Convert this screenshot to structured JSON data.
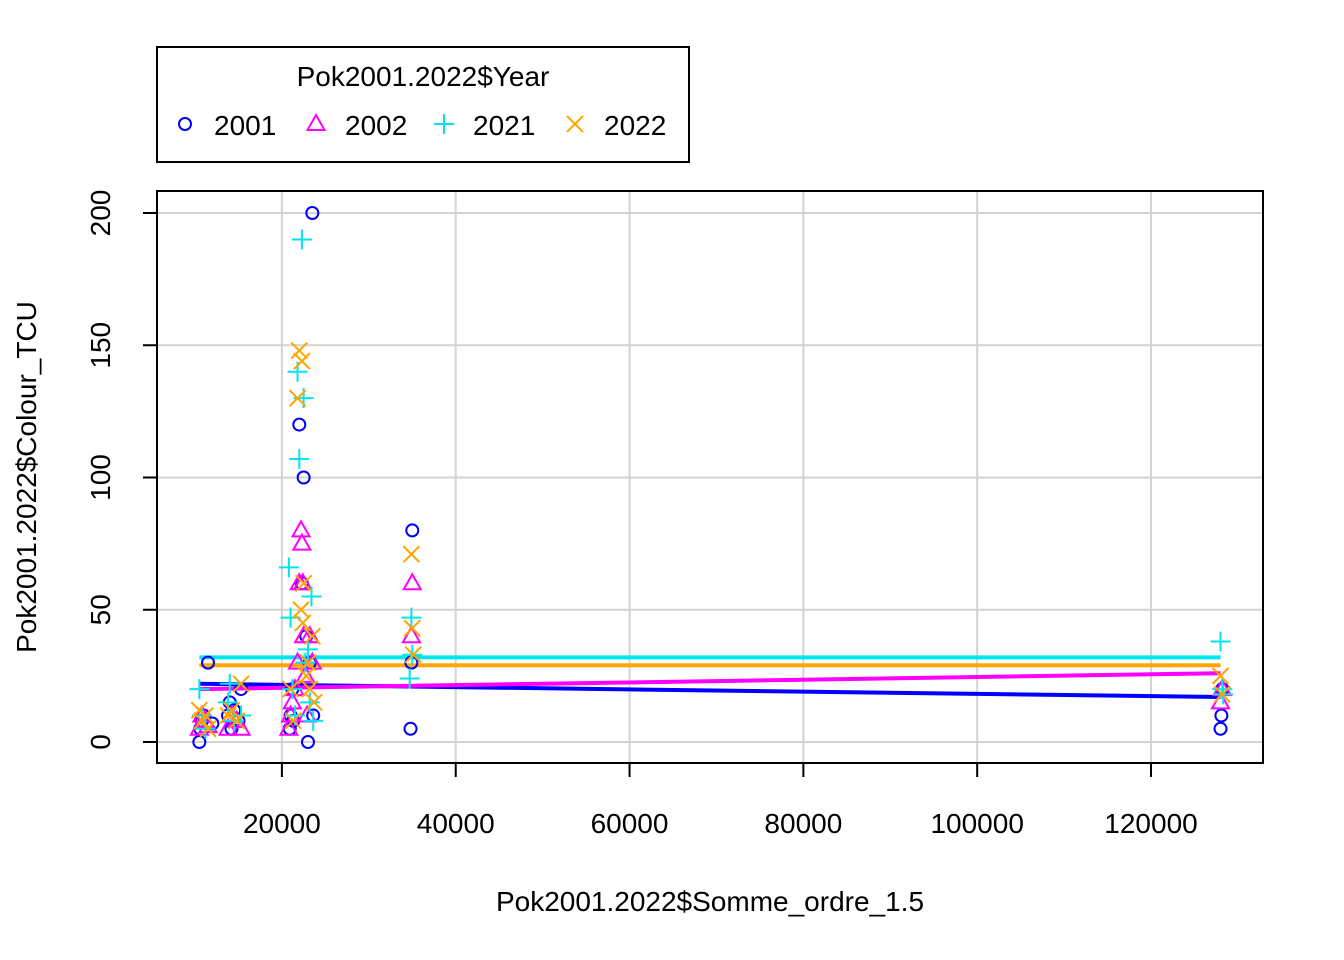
{
  "chart_data": {
    "type": "scatter",
    "title": "",
    "xlabel": "Pok2001.2022$Somme_ordre_1.5",
    "ylabel": "Pok2001.2022$Colour_TCU",
    "xlim": [
      3000,
      130000
    ],
    "ylim": [
      -8,
      200
    ],
    "x_ticks": [
      20000,
      40000,
      60000,
      80000,
      100000,
      120000
    ],
    "y_ticks": [
      0,
      50,
      100,
      150,
      200
    ],
    "x_tick_labels": [
      "20000",
      "40000",
      "60000",
      "80000",
      "100000",
      "120000"
    ],
    "y_tick_labels": [
      "0",
      "50",
      "100",
      "150",
      "200"
    ],
    "grid": true,
    "legend": {
      "title": "Pok2001.2022$Year",
      "position": "top-left, outside plot, horizontal"
    },
    "series": [
      {
        "name": "2001",
        "color": "#0000ff",
        "marker": "circle",
        "points": [
          [
            10500,
            0
          ],
          [
            10600,
            5
          ],
          [
            10800,
            8
          ],
          [
            11000,
            10
          ],
          [
            11500,
            30
          ],
          [
            12000,
            7
          ],
          [
            13800,
            10
          ],
          [
            14000,
            15
          ],
          [
            14200,
            5
          ],
          [
            14500,
            12
          ],
          [
            15000,
            8
          ],
          [
            15300,
            20
          ],
          [
            20900,
            5
          ],
          [
            21000,
            10
          ],
          [
            21200,
            20
          ],
          [
            21300,
            8
          ],
          [
            22000,
            120
          ],
          [
            22300,
            60
          ],
          [
            22500,
            100
          ],
          [
            22800,
            40
          ],
          [
            23000,
            0
          ],
          [
            23200,
            30
          ],
          [
            23500,
            200
          ],
          [
            23600,
            10
          ],
          [
            34800,
            5
          ],
          [
            34900,
            30
          ],
          [
            35000,
            80
          ],
          [
            128000,
            5
          ],
          [
            128100,
            10
          ],
          [
            128200,
            20
          ]
        ],
        "trend": [
          [
            10500,
            22
          ],
          [
            128000,
            17
          ]
        ]
      },
      {
        "name": "2002",
        "color": "#ff00ff",
        "marker": "triangle",
        "points": [
          [
            10500,
            5
          ],
          [
            10800,
            10
          ],
          [
            11200,
            8
          ],
          [
            11500,
            6
          ],
          [
            13800,
            5
          ],
          [
            14200,
            10
          ],
          [
            14800,
            8
          ],
          [
            15300,
            5
          ],
          [
            20800,
            5
          ],
          [
            21000,
            10
          ],
          [
            21200,
            15
          ],
          [
            21500,
            20
          ],
          [
            21800,
            30
          ],
          [
            22000,
            60
          ],
          [
            22200,
            80
          ],
          [
            22300,
            75
          ],
          [
            22400,
            60
          ],
          [
            22500,
            40
          ],
          [
            22700,
            25
          ],
          [
            22900,
            10
          ],
          [
            23200,
            40
          ],
          [
            23500,
            30
          ],
          [
            34900,
            40
          ],
          [
            35000,
            60
          ],
          [
            128000,
            15
          ],
          [
            128200,
            20
          ]
        ],
        "trend": [
          [
            10500,
            20
          ],
          [
            128000,
            26
          ]
        ]
      },
      {
        "name": "2021",
        "color": "#00e5ee",
        "marker": "plus",
        "points": [
          [
            10500,
            20
          ],
          [
            10800,
            10
          ],
          [
            11200,
            5
          ],
          [
            13800,
            15
          ],
          [
            14000,
            22
          ],
          [
            14500,
            8
          ],
          [
            15300,
            10
          ],
          [
            20800,
            66
          ],
          [
            21000,
            47
          ],
          [
            21200,
            20
          ],
          [
            21500,
            10
          ],
          [
            21800,
            140
          ],
          [
            22000,
            107
          ],
          [
            22300,
            190
          ],
          [
            22500,
            130
          ],
          [
            22700,
            30
          ],
          [
            23000,
            35
          ],
          [
            23200,
            15
          ],
          [
            23400,
            55
          ],
          [
            23600,
            8
          ],
          [
            34700,
            24
          ],
          [
            34900,
            47
          ],
          [
            35000,
            33
          ],
          [
            128000,
            38
          ],
          [
            128200,
            20
          ],
          [
            128300,
            18
          ]
        ],
        "trend": [
          [
            10500,
            32
          ],
          [
            128000,
            32
          ]
        ]
      },
      {
        "name": "2022",
        "color": "#ffa500",
        "marker": "x",
        "points": [
          [
            10500,
            12
          ],
          [
            10800,
            8
          ],
          [
            11200,
            10
          ],
          [
            11500,
            5
          ],
          [
            13800,
            10
          ],
          [
            14200,
            12
          ],
          [
            14800,
            8
          ],
          [
            15300,
            22
          ],
          [
            21000,
            20
          ],
          [
            21300,
            8
          ],
          [
            21800,
            130
          ],
          [
            22000,
            148
          ],
          [
            22300,
            144
          ],
          [
            22500,
            60
          ],
          [
            22200,
            50
          ],
          [
            22400,
            45
          ],
          [
            22800,
            25
          ],
          [
            23000,
            30
          ],
          [
            23200,
            20
          ],
          [
            23500,
            40
          ],
          [
            23700,
            15
          ],
          [
            34900,
            71
          ],
          [
            35000,
            43
          ],
          [
            35100,
            33
          ],
          [
            128000,
            25
          ],
          [
            128200,
            18
          ]
        ],
        "trend": [
          [
            10500,
            29
          ],
          [
            128000,
            29
          ]
        ]
      }
    ]
  }
}
